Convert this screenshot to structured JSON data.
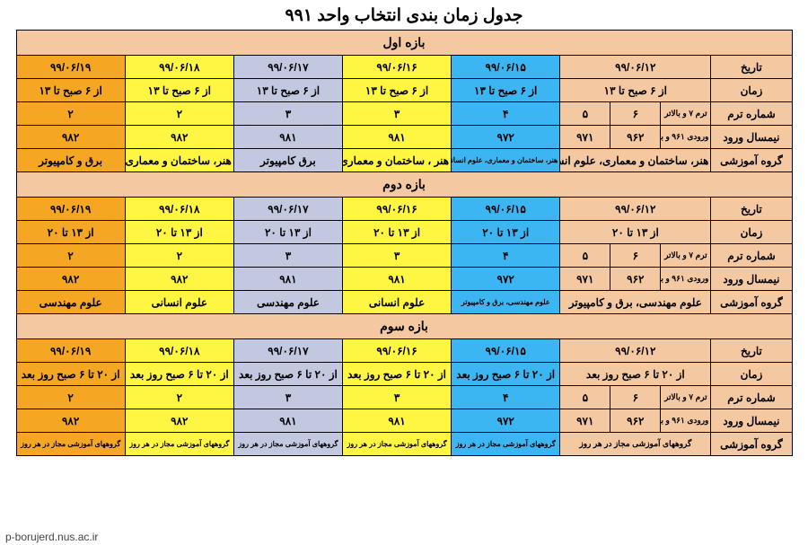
{
  "title": "جدول زمان بندی  انتخاب واحد ۹۹۱",
  "footer": "p-borujerd.nus.ac.ir",
  "colors": {
    "peach": "#f4c8a0",
    "blue": "#3bb6f2",
    "yellow": "#fff543",
    "lblue": "#c2c8e0",
    "orange": "#f5a623",
    "border": "#000000",
    "bg": "#ffffff"
  },
  "sections": [
    {
      "name": "بازه اول",
      "rows": {
        "تاریخ": {
          "cells": [
            "۹۹/۰۶/۱۲",
            "۹۹/۰۶/۱۵",
            "۹۹/۰۶/۱۶",
            "۹۹/۰۶/۱۷",
            "۹۹/۰۶/۱۸",
            "۹۹/۰۶/۱۹"
          ],
          "merged": true
        },
        "زمان": {
          "cells": [
            "از ۶ صبح تا ۱۳",
            "از ۶ صبح تا ۱۳",
            "از ۶ صبح تا ۱۳",
            "از ۶ صبح تا ۱۳",
            "از ۶ صبح تا ۱۳",
            "از ۶ صبح تا ۱۳"
          ],
          "merged": true
        },
        "شماره ترم": {
          "cells": [
            "ترم ۷ و بالاتر",
            "۶",
            "۵",
            "۴",
            "۳",
            "۳",
            "۲",
            "۲"
          ],
          "merged": false
        },
        "نیمسال ورود": {
          "cells": [
            "ورودی ۹۶۱ و بالاتر",
            "۹۶۲",
            "۹۷۱",
            "۹۷۲",
            "۹۸۱",
            "۹۸۱",
            "۹۸۲",
            "۹۸۲"
          ],
          "merged": false
        },
        "گروه آموزشی": {
          "cells": [
            "هنر، ساختمان و معماری، علوم انسانی",
            "هنر، ساختمان و معماری، علوم انسانی",
            "هنر ، ساختمان و معماری",
            "برق کامپیوتر",
            "هنر، ساختمان و معماری",
            "برق و کامپیوتر"
          ],
          "merged": true,
          "small": [
            1
          ]
        }
      }
    },
    {
      "name": "بازه دوم",
      "rows": {
        "تاریخ": {
          "cells": [
            "۹۹/۰۶/۱۲",
            "۹۹/۰۶/۱۵",
            "۹۹/۰۶/۱۶",
            "۹۹/۰۶/۱۷",
            "۹۹/۰۶/۱۸",
            "۹۹/۰۶/۱۹"
          ],
          "merged": true
        },
        "زمان": {
          "cells": [
            "از ۱۳ تا ۲۰",
            "از ۱۳ تا ۲۰",
            "از ۱۳ تا ۲۰",
            "از ۱۳ تا ۲۰",
            "از ۱۳ تا ۲۰",
            "از ۱۳ تا ۲۰"
          ],
          "merged": true
        },
        "شماره ترم": {
          "cells": [
            "ترم ۷ و بالاتر",
            "۶",
            "۵",
            "۴",
            "۳",
            "۳",
            "۲",
            "۲"
          ],
          "merged": false
        },
        "نیمسال ورود": {
          "cells": [
            "ورودی ۹۶۱ و بالاتر",
            "۹۶۲",
            "۹۷۱",
            "۹۷۲",
            "۹۸۱",
            "۹۸۱",
            "۹۸۲",
            "۹۸۲"
          ],
          "merged": false
        },
        "گروه آموزشی": {
          "cells": [
            "علوم مهندسی، برق و کامپیوتر",
            "علوم مهندسی، برق و کامپیوتر",
            "علوم انسانی",
            "علوم مهندسی",
            "علوم انسانی",
            "علوم مهندسی"
          ],
          "merged": true,
          "small": [
            1
          ]
        }
      }
    },
    {
      "name": "بازه سوم",
      "rows": {
        "تاریخ": {
          "cells": [
            "۹۹/۰۶/۱۲",
            "۹۹/۰۶/۱۵",
            "۹۹/۰۶/۱۶",
            "۹۹/۰۶/۱۷",
            "۹۹/۰۶/۱۸",
            "۹۹/۰۶/۱۹"
          ],
          "merged": true
        },
        "زمان": {
          "cells": [
            "از ۲۰ تا ۶ صبح روز بعد",
            "از ۲۰ تا ۶ صبح روز بعد",
            "از ۲۰ تا ۶ صبح روز بعد",
            "از ۲۰ تا ۶ صبح روز بعد",
            "از ۲۰ تا ۶ صبح روز بعد",
            "از ۲۰ تا ۶ صبح روز بعد"
          ],
          "merged": true
        },
        "شماره ترم": {
          "cells": [
            "ترم ۷ و بالاتر",
            "۶",
            "۵",
            "۴",
            "۳",
            "۳",
            "۲",
            "۲"
          ],
          "merged": false
        },
        "نیمسال ورود": {
          "cells": [
            "ورودی ۹۶۱ و بالاتر",
            "۹۶۲",
            "۹۷۱",
            "۹۷۲",
            "۹۸۱",
            "۹۸۱",
            "۹۸۲",
            "۹۸۲"
          ],
          "merged": false
        },
        "گروه آموزشی": {
          "cells": [
            "گروههای آموزشی مجاز در هر روز",
            "گروههای آموزشی مجاز در هر روز",
            "گروههای آموزشی مجاز در هر روز",
            "گروههای آموزشی مجاز در هر روز",
            "گروههای آموزشی مجاز در هر روز",
            "گروههای آموزشی مجاز در هر روز"
          ],
          "merged": true,
          "smallAll": true
        }
      }
    }
  ],
  "cellClasses": {
    "merged": [
      "peach",
      "blue",
      "yellow",
      "lblue",
      "yellow",
      "orange"
    ],
    "split": [
      "peach",
      "peach",
      "peach",
      "blue",
      "yellow",
      "lblue",
      "yellow",
      "orange"
    ]
  },
  "rowOrder": [
    "تاریخ",
    "زمان",
    "شماره ترم",
    "نیمسال ورود",
    "گروه آموزشی"
  ]
}
